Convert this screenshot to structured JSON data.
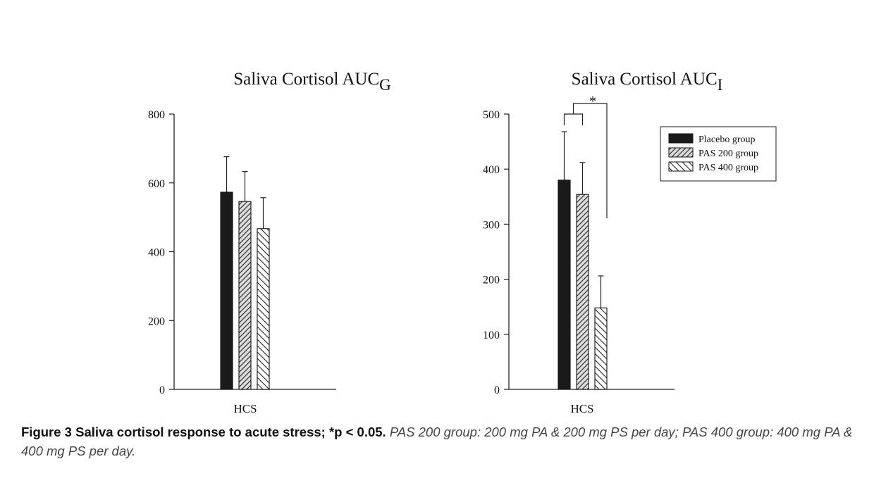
{
  "chart_data": [
    {
      "type": "bar",
      "title": "Saliva Cortisol AUC",
      "title_subscript": "G",
      "categories": [
        "HCS"
      ],
      "ylim": [
        0,
        800
      ],
      "yticks": [
        0,
        200,
        400,
        600,
        800
      ],
      "series": [
        {
          "name": "Placebo group",
          "values": [
            573
          ],
          "error": [
            103
          ],
          "fill": "solid"
        },
        {
          "name": "PAS 200 group",
          "values": [
            546
          ],
          "error": [
            87
          ],
          "fill": "hatch-diagonal"
        },
        {
          "name": "PAS 400 group",
          "values": [
            467
          ],
          "error": [
            90
          ],
          "fill": "hatch-back-diagonal"
        }
      ],
      "grid": false
    },
    {
      "type": "bar",
      "title": "Saliva Cortisol AUC",
      "title_subscript": "I",
      "categories": [
        "HCS"
      ],
      "ylim": [
        0,
        500
      ],
      "yticks": [
        0,
        100,
        200,
        300,
        400,
        500
      ],
      "series": [
        {
          "name": "Placebo group",
          "values": [
            380
          ],
          "error": [
            88
          ],
          "fill": "solid"
        },
        {
          "name": "PAS 200 group",
          "values": [
            354
          ],
          "error": [
            58
          ],
          "fill": "hatch-diagonal"
        },
        {
          "name": "PAS 400 group",
          "values": [
            148
          ],
          "error": [
            58
          ],
          "fill": "hatch-back-diagonal"
        }
      ],
      "annotation": {
        "text": "*",
        "between": [
          "Placebo group + PAS 200 group",
          "PAS 400 group"
        ]
      },
      "legend": {
        "position": "top-right",
        "entries": [
          "Placebo group",
          "PAS 200 group",
          "PAS 400 group"
        ]
      },
      "grid": false
    }
  ],
  "caption": {
    "lead": "Figure 3 Saliva cortisol response to acute stress; *p < 0.05.",
    "rest": "PAS 200 group: 200 mg PA & 200 mg PS per day; PAS 400 group: 400 mg PA & 400 mg PS per day."
  },
  "colors": {
    "ink": "#111111",
    "bar_solid": "#1a1a1a",
    "hatch": "#333333",
    "caption_italic": "#444444"
  }
}
